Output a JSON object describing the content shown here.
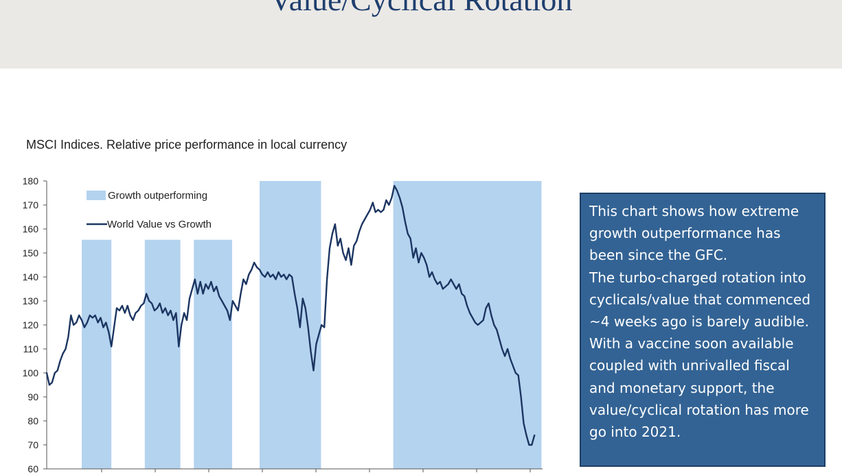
{
  "slide": {
    "title": "Value/Cyclical Rotation",
    "caption": "MSCI Indices. Relative price performance in local currency",
    "callout": [
      "This chart shows how extreme growth outperformance has been since the GFC.",
      "The turbo-charged rotation into cyclicals/value that commenced ~4 weeks ago is barely audible.",
      "With a vaccine soon available coupled with unrivalled fiscal and monetary support, the value/cyclical rotation has more go into 2021."
    ],
    "colors": {
      "header_band": "#ebe9e6",
      "title": "#1f3f6e",
      "callout_fill": "#336394",
      "shade": "#b4d3ef",
      "line": "#1c3561"
    }
  },
  "chart_data": {
    "type": "line",
    "y_ticks": [
      "180",
      "170",
      "160",
      "150",
      "140",
      "130",
      "120",
      "110",
      "100",
      "90",
      "80",
      "70",
      "60"
    ],
    "ylim": [
      60,
      180
    ],
    "xlim": [
      0,
      92
    ],
    "grid": false,
    "legend_position": "top-left",
    "legend": {
      "shade_label": "Growth outperforming",
      "line_label": "World Value vs Growth"
    },
    "shaded_periods": [
      {
        "x": [
          6.5,
          12
        ],
        "top": 155.5
      },
      {
        "x": [
          18.2,
          24.8
        ],
        "top": 155.5
      },
      {
        "x": [
          27.3,
          34.4
        ],
        "top": 155.5
      },
      {
        "x": [
          39.5,
          50.9
        ],
        "top": 180
      },
      {
        "x": [
          64.3,
          91.8
        ],
        "top": 180
      }
    ],
    "series": [
      {
        "name": "World Value vs Growth",
        "points": [
          [
            0,
            100
          ],
          [
            0.5,
            95
          ],
          [
            1,
            96
          ],
          [
            1.5,
            100
          ],
          [
            2,
            101
          ],
          [
            2.5,
            105
          ],
          [
            3,
            108
          ],
          [
            3.5,
            110
          ],
          [
            4,
            115
          ],
          [
            4.5,
            124
          ],
          [
            5,
            120
          ],
          [
            5.5,
            121
          ],
          [
            6,
            124
          ],
          [
            6.5,
            122
          ],
          [
            7,
            119
          ],
          [
            7.5,
            121
          ],
          [
            8,
            124
          ],
          [
            8.5,
            123
          ],
          [
            9,
            124
          ],
          [
            9.5,
            121
          ],
          [
            10,
            123
          ],
          [
            10.5,
            119
          ],
          [
            11,
            121
          ],
          [
            11.5,
            117
          ],
          [
            12,
            111
          ],
          [
            12.5,
            119
          ],
          [
            13,
            127
          ],
          [
            13.5,
            126
          ],
          [
            14,
            128
          ],
          [
            14.5,
            125
          ],
          [
            15,
            128
          ],
          [
            15.5,
            124
          ],
          [
            16,
            122
          ],
          [
            16.5,
            125
          ],
          [
            17,
            126
          ],
          [
            17.5,
            128
          ],
          [
            18,
            129
          ],
          [
            18.5,
            133
          ],
          [
            19,
            130
          ],
          [
            19.5,
            129
          ],
          [
            20,
            126
          ],
          [
            20.5,
            127
          ],
          [
            21,
            129
          ],
          [
            21.5,
            125
          ],
          [
            22,
            127
          ],
          [
            22.5,
            124
          ],
          [
            23,
            126
          ],
          [
            23.5,
            122
          ],
          [
            24,
            125
          ],
          [
            24.5,
            111
          ],
          [
            25,
            120
          ],
          [
            25.5,
            125
          ],
          [
            26,
            122
          ],
          [
            26.5,
            131
          ],
          [
            27,
            135
          ],
          [
            27.5,
            139
          ],
          [
            28,
            133
          ],
          [
            28.5,
            138
          ],
          [
            29,
            133
          ],
          [
            29.5,
            137
          ],
          [
            30,
            135
          ],
          [
            30.5,
            138
          ],
          [
            31,
            134
          ],
          [
            31.5,
            136
          ],
          [
            32,
            132
          ],
          [
            32.5,
            130
          ],
          [
            33,
            128
          ],
          [
            33.5,
            126
          ],
          [
            34,
            122
          ],
          [
            34.5,
            130
          ],
          [
            35,
            128
          ],
          [
            35.5,
            126
          ],
          [
            36,
            133
          ],
          [
            36.5,
            139
          ],
          [
            37,
            137
          ],
          [
            37.5,
            141
          ],
          [
            38,
            143
          ],
          [
            38.5,
            146
          ],
          [
            39,
            144
          ],
          [
            39.5,
            143
          ],
          [
            40,
            141
          ],
          [
            40.5,
            140
          ],
          [
            41,
            142
          ],
          [
            41.5,
            140
          ],
          [
            42,
            141
          ],
          [
            42.5,
            139
          ],
          [
            43,
            142
          ],
          [
            43.5,
            140
          ],
          [
            44,
            141
          ],
          [
            44.5,
            139
          ],
          [
            45,
            141
          ],
          [
            45.5,
            140
          ],
          [
            46,
            133
          ],
          [
            46.5,
            127
          ],
          [
            47,
            119
          ],
          [
            47.5,
            131
          ],
          [
            48,
            127
          ],
          [
            48.5,
            119
          ],
          [
            49,
            109
          ],
          [
            49.5,
            101
          ],
          [
            50,
            112
          ],
          [
            50.5,
            116
          ],
          [
            51,
            120
          ],
          [
            51.5,
            119
          ],
          [
            52,
            139
          ],
          [
            52.5,
            152
          ],
          [
            53,
            158
          ],
          [
            53.5,
            162
          ],
          [
            54,
            153
          ],
          [
            54.5,
            156
          ],
          [
            55,
            150
          ],
          [
            55.5,
            147
          ],
          [
            56,
            152
          ],
          [
            56.5,
            145
          ],
          [
            57,
            153
          ],
          [
            57.5,
            155
          ],
          [
            58,
            159
          ],
          [
            58.5,
            162
          ],
          [
            59,
            164
          ],
          [
            59.5,
            166
          ],
          [
            60,
            168
          ],
          [
            60.5,
            171
          ],
          [
            61,
            167
          ],
          [
            61.5,
            168
          ],
          [
            62,
            167
          ],
          [
            62.5,
            168
          ],
          [
            63,
            172
          ],
          [
            63.5,
            170
          ],
          [
            64,
            173
          ],
          [
            64.5,
            178
          ],
          [
            65,
            176
          ],
          [
            65.5,
            173
          ],
          [
            66,
            169
          ],
          [
            66.5,
            163
          ],
          [
            67,
            158
          ],
          [
            67.5,
            156
          ],
          [
            68,
            148
          ],
          [
            68.5,
            152
          ],
          [
            69,
            146
          ],
          [
            69.5,
            150
          ],
          [
            70,
            148
          ],
          [
            70.5,
            145
          ],
          [
            71,
            140
          ],
          [
            71.5,
            142
          ],
          [
            72,
            139
          ],
          [
            72.5,
            137
          ],
          [
            73,
            138
          ],
          [
            73.5,
            135
          ],
          [
            74,
            136
          ],
          [
            74.5,
            137
          ],
          [
            75,
            139
          ],
          [
            75.5,
            137
          ],
          [
            76,
            135
          ],
          [
            76.5,
            137
          ],
          [
            77,
            133
          ],
          [
            77.5,
            132
          ],
          [
            78,
            128
          ],
          [
            78.5,
            125
          ],
          [
            79,
            123
          ],
          [
            79.5,
            121
          ],
          [
            80,
            120
          ],
          [
            80.5,
            121
          ],
          [
            81,
            122
          ],
          [
            81.5,
            127
          ],
          [
            82,
            129
          ],
          [
            82.5,
            124
          ],
          [
            83,
            120
          ],
          [
            83.5,
            118
          ],
          [
            84,
            114
          ],
          [
            84.5,
            110
          ],
          [
            85,
            107
          ],
          [
            85.5,
            110
          ],
          [
            86,
            106
          ],
          [
            86.5,
            103
          ],
          [
            87,
            100
          ],
          [
            87.5,
            99
          ],
          [
            88,
            90
          ],
          [
            88.5,
            79
          ],
          [
            89,
            74
          ],
          [
            89.5,
            70
          ],
          [
            90,
            70
          ],
          [
            90.5,
            74
          ]
        ]
      }
    ]
  }
}
